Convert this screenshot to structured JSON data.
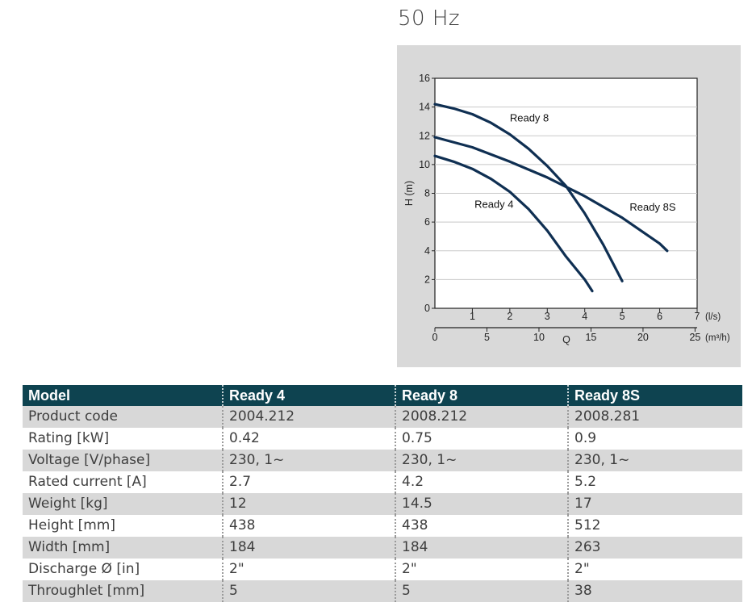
{
  "frequency_label": "50 Hz",
  "chart_data": {
    "type": "line",
    "title": "",
    "ylabel": "H (m)",
    "xlabel": "Q",
    "x_unit_ls": "(l/s)",
    "x_unit_m3h": "(m³/h)",
    "xlim": [
      0,
      7
    ],
    "ylim": [
      0,
      16
    ],
    "x_ticks_ls": [
      "1",
      "2",
      "3",
      "4",
      "5",
      "6",
      "7"
    ],
    "x_ticks_m3h": [
      "0",
      "5",
      "10",
      "15",
      "20",
      "25"
    ],
    "x_ticks_m3h_values": [
      0,
      5,
      10,
      15,
      20,
      25
    ],
    "y_ticks": [
      "0",
      "2",
      "4",
      "6",
      "8",
      "10",
      "12",
      "14",
      "16"
    ],
    "grid": "horizontal",
    "series": [
      {
        "name": "Ready 4",
        "x": [
          0,
          0.5,
          1.0,
          1.5,
          2.0,
          2.5,
          3.0,
          3.5,
          4.0,
          4.2
        ],
        "y": [
          10.6,
          10.2,
          9.7,
          9.0,
          8.1,
          6.9,
          5.4,
          3.6,
          2.0,
          1.2
        ]
      },
      {
        "name": "Ready 8",
        "x": [
          0,
          0.5,
          1.0,
          1.5,
          2.0,
          2.5,
          3.0,
          3.5,
          4.0,
          4.5,
          5.0
        ],
        "y": [
          14.2,
          13.9,
          13.5,
          12.9,
          12.1,
          11.1,
          9.9,
          8.5,
          6.6,
          4.4,
          1.9
        ]
      },
      {
        "name": "Ready 8S",
        "x": [
          0,
          1,
          2,
          3,
          4,
          5,
          6,
          6.2
        ],
        "y": [
          11.9,
          11.2,
          10.2,
          9.1,
          7.8,
          6.3,
          4.5,
          4.0
        ]
      }
    ]
  },
  "table": {
    "headers": [
      "Model",
      "Ready 4",
      "Ready 8",
      "Ready 8S"
    ],
    "rows": [
      [
        "Product code",
        "2004.212",
        "2008.212",
        "2008.281"
      ],
      [
        "Rating [kW]",
        "0.42",
        "0.75",
        "0.9"
      ],
      [
        "Voltage [V/phase]",
        "230, 1~",
        "230, 1~",
        "230, 1~"
      ],
      [
        "Rated current [A]",
        "2.7",
        "4.2",
        "5.2"
      ],
      [
        "Weight [kg]",
        "12",
        "14.5",
        "17"
      ],
      [
        "Height [mm]",
        "438",
        "438",
        "512"
      ],
      [
        "Width [mm]",
        "184",
        "184",
        "263"
      ],
      [
        "Discharge Ø [in]",
        "2\"",
        "2\"",
        "2\""
      ],
      [
        "Throughlet [mm]",
        "5",
        "5",
        "38"
      ]
    ]
  },
  "colors": {
    "curve": "#0f2f52",
    "header_bg": "#0e4350",
    "panel_bg": "#d9d9d9"
  }
}
